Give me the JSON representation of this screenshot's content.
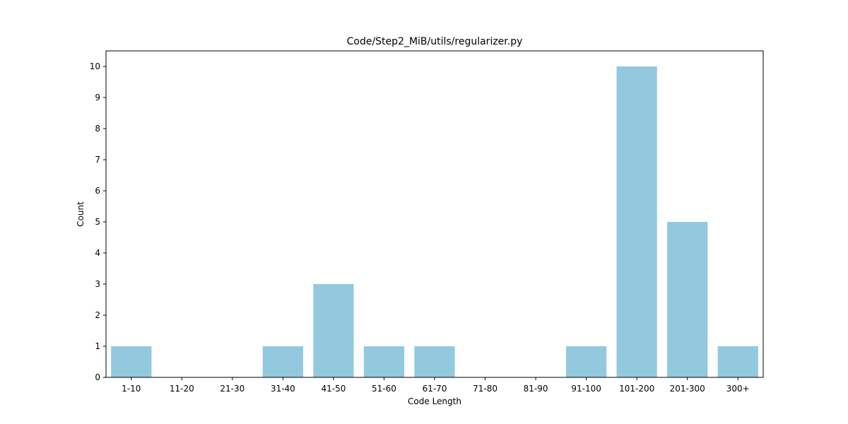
{
  "chart_data": {
    "type": "bar",
    "title": "Code/Step2_MiB/utils/regularizer.py",
    "xlabel": "Code Length",
    "ylabel": "Count",
    "categories": [
      "1-10",
      "11-20",
      "21-30",
      "31-40",
      "41-50",
      "51-60",
      "61-70",
      "71-80",
      "81-90",
      "91-100",
      "101-200",
      "201-300",
      "300+"
    ],
    "values": [
      1,
      0,
      0,
      1,
      3,
      1,
      1,
      0,
      0,
      1,
      10,
      5,
      1
    ],
    "ylim": [
      0,
      10.5
    ],
    "yticks": [
      0,
      1,
      2,
      3,
      4,
      5,
      6,
      7,
      8,
      9,
      10
    ],
    "grid": false,
    "bar_color": "#92c9de"
  }
}
